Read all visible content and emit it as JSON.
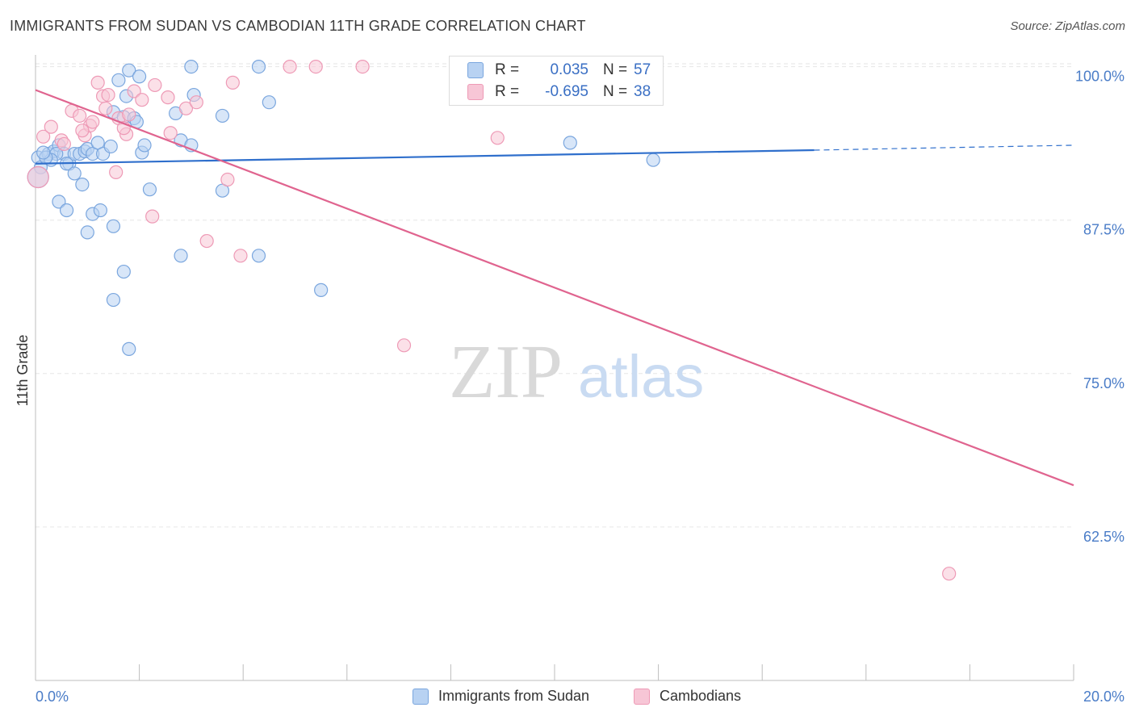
{
  "title": "IMMIGRANTS FROM SUDAN VS CAMBODIAN 11TH GRADE CORRELATION CHART",
  "source": "Source: ZipAtlas.com",
  "watermark": {
    "zip": "ZIP",
    "atlas": "atlas"
  },
  "stats": [
    {
      "r_label": "R =",
      "r_value": "0.035",
      "n_label": "N =",
      "n_value": "57"
    },
    {
      "r_label": "R =",
      "r_value": "-0.695",
      "n_label": "N =",
      "n_value": "38"
    }
  ],
  "legend": [
    {
      "label": "Immigrants from Sudan"
    },
    {
      "label": "Cambodians"
    }
  ],
  "colors": {
    "blue_fill": "#b8d2f2",
    "blue_stroke": "#7aa6de",
    "blue_line": "#2f6fcc",
    "pink_fill": "#f7c6d6",
    "pink_stroke": "#ee9ab6",
    "pink_line": "#e0648f",
    "axis_text": "#4a7cc7",
    "grid": "#e6e6e6"
  },
  "chart_data": {
    "type": "scatter",
    "title": "IMMIGRANTS FROM SUDAN VS CAMBODIAN 11TH GRADE CORRELATION CHART",
    "xlabel": "",
    "ylabel": "11th Grade",
    "xlim": [
      0,
      20
    ],
    "ylim": [
      50,
      100.5
    ],
    "x_tick_labels": [
      {
        "value": 0,
        "label": "0.0%"
      },
      {
        "value": 20,
        "label": "20.0%"
      }
    ],
    "y_ticks": [
      {
        "value": 100,
        "label": "100.0%"
      },
      {
        "value": 87.5,
        "label": "87.5%"
      },
      {
        "value": 75,
        "label": "75.0%"
      },
      {
        "value": 62.5,
        "label": "62.5%"
      }
    ],
    "series": [
      {
        "name": "Immigrants from Sudan",
        "color": "blue",
        "trend": {
          "x0": 0,
          "y0": 92.1,
          "x1": 15.0,
          "y1": 93.2,
          "dash_to_x": 20,
          "dash_to_y": 93.6
        },
        "points": [
          [
            0.05,
            92.6,
            8
          ],
          [
            0.1,
            91.8,
            8
          ],
          [
            0.25,
            92.9,
            8
          ],
          [
            0.35,
            93.1,
            8
          ],
          [
            0.45,
            93.6,
            8
          ],
          [
            0.55,
            92.9,
            8
          ],
          [
            0.65,
            92.1,
            8
          ],
          [
            0.75,
            92.9,
            8
          ],
          [
            0.85,
            92.9,
            8
          ],
          [
            0.95,
            93.1,
            8
          ],
          [
            1.0,
            93.3,
            8
          ],
          [
            1.1,
            92.9,
            8
          ],
          [
            1.2,
            93.8,
            8
          ],
          [
            1.3,
            92.9,
            8
          ],
          [
            1.45,
            93.5,
            8
          ],
          [
            1.5,
            96.3,
            8
          ],
          [
            1.6,
            98.9,
            8
          ],
          [
            1.7,
            95.9,
            8
          ],
          [
            1.75,
            97.6,
            8
          ],
          [
            1.8,
            99.7,
            8
          ],
          [
            1.9,
            95.8,
            8
          ],
          [
            1.95,
            95.5,
            8
          ],
          [
            2.0,
            99.2,
            8
          ],
          [
            2.05,
            93.0,
            8
          ],
          [
            2.1,
            93.6,
            8
          ],
          [
            2.2,
            90.0,
            8
          ],
          [
            2.7,
            96.2,
            8
          ],
          [
            2.8,
            94.0,
            8
          ],
          [
            3.0,
            93.6,
            8
          ],
          [
            3.0,
            100.0,
            8
          ],
          [
            3.05,
            97.7,
            8
          ],
          [
            3.6,
            96.0,
            8
          ],
          [
            3.6,
            89.9,
            8
          ],
          [
            4.3,
            100.0,
            8
          ],
          [
            4.5,
            97.1,
            8
          ],
          [
            0.45,
            89.0,
            8
          ],
          [
            0.6,
            92.1,
            8
          ],
          [
            0.75,
            91.3,
            8
          ],
          [
            0.9,
            90.4,
            8
          ],
          [
            0.6,
            88.3,
            8
          ],
          [
            1.1,
            88.0,
            8
          ],
          [
            1.25,
            88.3,
            8
          ],
          [
            1.0,
            86.5,
            8
          ],
          [
            1.5,
            87.0,
            8
          ],
          [
            1.7,
            83.3,
            8
          ],
          [
            1.5,
            81.0,
            8
          ],
          [
            1.8,
            77.0,
            8
          ],
          [
            2.8,
            84.6,
            8
          ],
          [
            4.3,
            84.6,
            8
          ],
          [
            5.5,
            81.8,
            8
          ],
          [
            10.3,
            93.8,
            8
          ],
          [
            11.9,
            92.4,
            8
          ],
          [
            0.4,
            92.9,
            8
          ],
          [
            0.3,
            92.4,
            8
          ],
          [
            0.2,
            92.6,
            8
          ],
          [
            0.15,
            93.0,
            8
          ],
          [
            0.05,
            91.0,
            13
          ]
        ]
      },
      {
        "name": "Cambodians",
        "color": "pink",
        "trend": {
          "x0": 0,
          "y0": 98.1,
          "x1": 20,
          "y1": 65.9
        },
        "points": [
          [
            0.05,
            91.0,
            13
          ],
          [
            0.15,
            94.3,
            8
          ],
          [
            0.3,
            95.1,
            8
          ],
          [
            0.5,
            94.0,
            8
          ],
          [
            0.55,
            93.7,
            8
          ],
          [
            0.7,
            96.4,
            8
          ],
          [
            0.85,
            96.0,
            8
          ],
          [
            0.95,
            94.4,
            8
          ],
          [
            1.05,
            95.2,
            8
          ],
          [
            1.1,
            95.5,
            8
          ],
          [
            1.3,
            97.6,
            8
          ],
          [
            1.35,
            96.6,
            8
          ],
          [
            1.4,
            97.7,
            8
          ],
          [
            1.2,
            98.7,
            8
          ],
          [
            1.6,
            95.8,
            8
          ],
          [
            1.8,
            96.1,
            8
          ],
          [
            1.75,
            94.5,
            8
          ],
          [
            1.9,
            98.0,
            8
          ],
          [
            2.05,
            97.3,
            8
          ],
          [
            2.3,
            98.5,
            8
          ],
          [
            2.55,
            97.5,
            8
          ],
          [
            2.9,
            96.6,
            8
          ],
          [
            3.1,
            97.1,
            8
          ],
          [
            2.6,
            94.6,
            8
          ],
          [
            1.55,
            91.4,
            8
          ],
          [
            2.25,
            87.8,
            8
          ],
          [
            3.3,
            85.8,
            8
          ],
          [
            3.7,
            90.8,
            8
          ],
          [
            3.8,
            98.7,
            8
          ],
          [
            3.95,
            84.6,
            8
          ],
          [
            4.9,
            100.0,
            8
          ],
          [
            5.4,
            100.0,
            8
          ],
          [
            6.3,
            100.0,
            8
          ],
          [
            7.1,
            77.3,
            8
          ],
          [
            8.9,
            94.2,
            8
          ],
          [
            17.6,
            58.7,
            8
          ],
          [
            0.9,
            94.8,
            8
          ],
          [
            1.7,
            95.0,
            8
          ]
        ]
      }
    ]
  }
}
